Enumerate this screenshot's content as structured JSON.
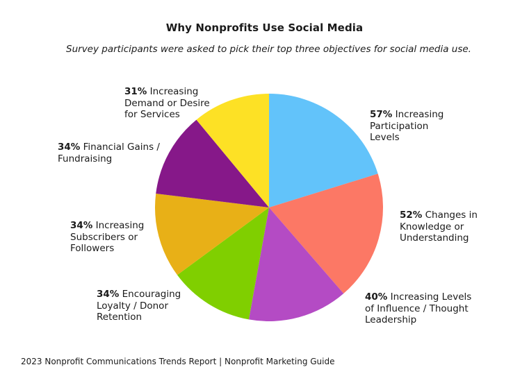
{
  "title": "Why Nonprofits Use Social Media",
  "subtitle": "Survey participants were asked to pick their top three objectives for social media use.",
  "source": "2023 Nonprofit Communications Trends Report | Nonprofit Marketing Guide",
  "chart_data": {
    "type": "pie",
    "title": "Why Nonprofits Use Social Media",
    "unit": "%",
    "slices": [
      {
        "pct": "57%",
        "value": 57,
        "label": "Increasing Participation Levels",
        "color": "#62C3FA"
      },
      {
        "pct": "52%",
        "value": 52,
        "label": "Changes in Knowledge or Understanding",
        "color": "#FC7865"
      },
      {
        "pct": "40%",
        "value": 40,
        "label": "Increasing Levels of Influence / Thought Leadership",
        "color": "#B44BC4"
      },
      {
        "pct": "34%",
        "value": 34,
        "label": "Encouraging Loyalty / Donor Retention",
        "color": "#80CF00"
      },
      {
        "pct": "34%",
        "value": 34,
        "label": "Increasing Subscribers or Followers",
        "color": "#E8B017"
      },
      {
        "pct": "34%",
        "value": 34,
        "label": "Financial Gains / Fundraising",
        "color": "#861889"
      },
      {
        "pct": "31%",
        "value": 31,
        "label": "Increasing Demand or Desire for Services",
        "color": "#FDE125"
      }
    ]
  }
}
